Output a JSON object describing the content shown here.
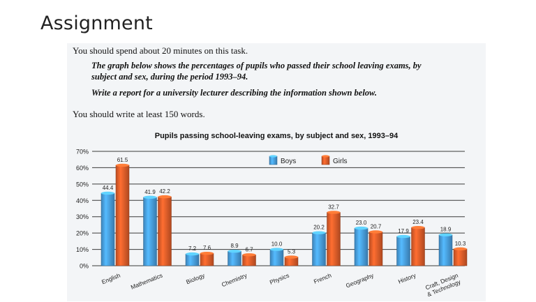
{
  "slide": {
    "title": "Assignment"
  },
  "task": {
    "line1": "You should spend about 20 minutes on this task.",
    "prompt_line1": "The graph below shows the percentages of pupils who passed their school leaving exams, by",
    "prompt_line2": "subject and sex, during the period 1993–94.",
    "prompt_line3": "Write a report for a university lecturer describing the information shown below.",
    "line5": "You should write at least 150 words."
  },
  "colors": {
    "boys": "#4aa3e6",
    "girls": "#e8602b",
    "grid": "#3a3a3a"
  },
  "chart_data": {
    "type": "bar",
    "title": "Pupils passing school-leaving exams, by subject and sex, 1993–94",
    "categories": [
      "English",
      "Mathematics",
      "Biology",
      "Chemistry",
      "Physics",
      "French",
      "Geography",
      "History",
      "Craft, Design & Technology"
    ],
    "category_lines": [
      [
        "English"
      ],
      [
        "Mathematics"
      ],
      [
        "Biology"
      ],
      [
        "Chemistry"
      ],
      [
        "Physics"
      ],
      [
        "French"
      ],
      [
        "Geography"
      ],
      [
        "History"
      ],
      [
        "Craft, Design",
        "& Technology"
      ]
    ],
    "series": [
      {
        "name": "Boys",
        "values": [
          44.4,
          41.9,
          7.2,
          8.9,
          10.0,
          20.2,
          23.0,
          17.9,
          18.9
        ]
      },
      {
        "name": "Girls",
        "values": [
          61.5,
          42.2,
          7.6,
          6.7,
          5.3,
          32.7,
          20.7,
          23.4,
          10.3
        ]
      }
    ],
    "value_labels": {
      "Boys": [
        "44.4",
        "41.9",
        "7.2",
        "8.9",
        "10.0",
        "20.2",
        "23.0",
        "17.9",
        "18.9"
      ],
      "Girls": [
        "61.5",
        "42.2",
        "7.6",
        "6.7",
        "5.3",
        "32.7",
        "20.7",
        "23.4",
        "10.3"
      ]
    },
    "y_ticks": [
      0,
      10,
      20,
      30,
      40,
      50,
      60,
      70
    ],
    "y_tick_labels": [
      "0%",
      "10%",
      "20%",
      "30%",
      "40%",
      "50%",
      "60%",
      "70%"
    ],
    "ylim": [
      0,
      70
    ],
    "grid": true,
    "legend_position": "top-center"
  }
}
